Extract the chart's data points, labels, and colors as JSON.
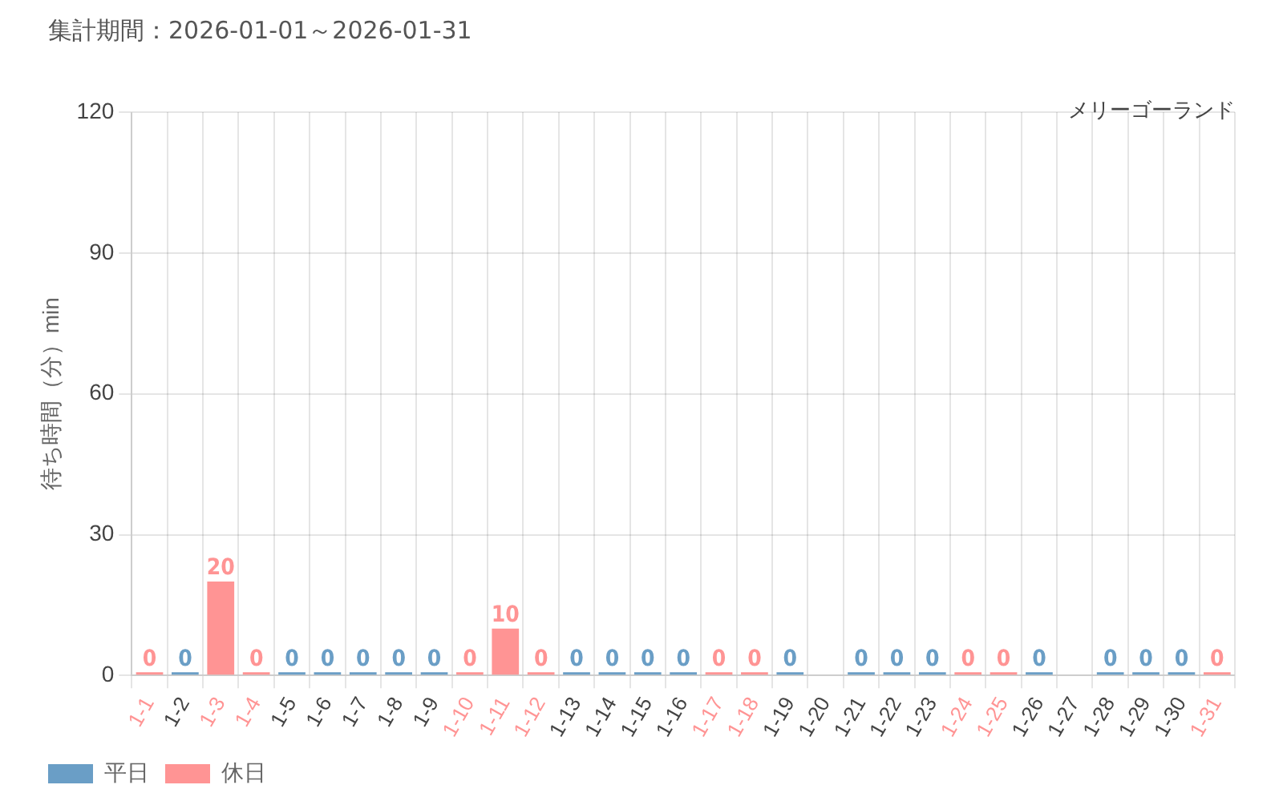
{
  "chart_data": {
    "type": "bar",
    "title": "集計期間：2026-01-01～2026-01-31",
    "subtitle": "メリーゴーランド",
    "ylabel": "待ち時間（分）min",
    "categories": [
      "1-1",
      "1-2",
      "1-3",
      "1-4",
      "1-5",
      "1-6",
      "1-7",
      "1-8",
      "1-9",
      "1-10",
      "1-11",
      "1-12",
      "1-13",
      "1-14",
      "1-15",
      "1-16",
      "1-17",
      "1-18",
      "1-19",
      "1-20",
      "1-21",
      "1-22",
      "1-23",
      "1-24",
      "1-25",
      "1-26",
      "1-27",
      "1-28",
      "1-29",
      "1-30",
      "1-31"
    ],
    "series": [
      {
        "name": "平日",
        "color": "#6a9ec6",
        "values": [
          null,
          0,
          null,
          null,
          0,
          0,
          0,
          0,
          0,
          null,
          null,
          null,
          0,
          0,
          0,
          0,
          null,
          null,
          0,
          null,
          0,
          0,
          0,
          null,
          null,
          0,
          null,
          0,
          0,
          0,
          null
        ]
      },
      {
        "name": "休日",
        "color": "#ff9494",
        "values": [
          0,
          null,
          20,
          0,
          null,
          null,
          null,
          null,
          null,
          0,
          10,
          0,
          null,
          null,
          null,
          null,
          0,
          0,
          null,
          null,
          null,
          null,
          null,
          0,
          0,
          null,
          null,
          null,
          null,
          null,
          0
        ]
      }
    ],
    "ylim": [
      0,
      120
    ],
    "yticks": [
      0,
      30,
      60,
      90,
      120
    ],
    "grid": true,
    "legend": "bottom left",
    "data_labels": true
  }
}
